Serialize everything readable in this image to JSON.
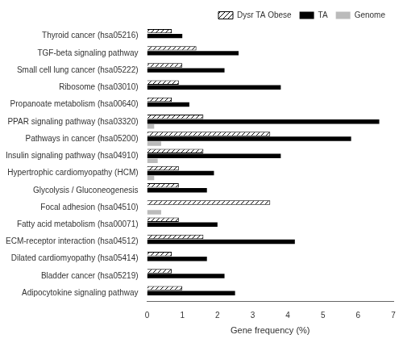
{
  "chart_data": {
    "type": "bar",
    "orientation": "horizontal",
    "categories": [
      "Adipocytokine signaling pathway",
      "Bladder cancer (hsa05219)",
      "Dilated cardiomyopathy (hsa05414)",
      "ECM-receptor interaction (hsa04512)",
      "Fatty acid metabolism (hsa00071)",
      "Focal adhesion (hsa04510)",
      "Glycolysis / Gluconeogenesis",
      "Hypertrophic cardiomyopathy (HCM)",
      "Insulin signaling pathway (hsa04910)",
      "Pathways in cancer (hsa05200)",
      "PPAR signaling pathway (hsa03320)",
      "Propanoate metabolism (hsa00640)",
      "Ribosome (hsa03010)",
      "Small cell lung cancer (hsa05222)",
      "TGF-beta signaling pathway",
      "Thyroid cancer (hsa05216)"
    ],
    "series": [
      {
        "name": "Dysr TA Obese",
        "color": "#ffffff",
        "values": [
          1.0,
          0.7,
          0.7,
          1.6,
          0.9,
          3.5,
          0.9,
          0.9,
          1.6,
          3.5,
          1.6,
          0.7,
          0.9,
          1.0,
          1.4,
          0.7
        ]
      },
      {
        "name": "TA",
        "color": "#000000",
        "values": [
          2.5,
          2.2,
          1.7,
          4.2,
          2.0,
          0.0,
          1.7,
          1.9,
          3.8,
          5.8,
          6.6,
          1.2,
          3.8,
          2.2,
          2.6,
          1.0
        ]
      },
      {
        "name": "Genome",
        "color": "#bbbbbb",
        "values": [
          0.0,
          0.0,
          0.0,
          0.0,
          0.0,
          0.4,
          0.0,
          0.2,
          0.3,
          0.4,
          0.2,
          0.0,
          0.0,
          0.0,
          0.0,
          0.0
        ]
      }
    ],
    "xlabel": "Gene frequency (%)",
    "xlim": [
      0,
      7
    ],
    "xticks": [
      0,
      1,
      2,
      3,
      4,
      5,
      6,
      7
    ],
    "grid": false,
    "legend": "upper right"
  }
}
